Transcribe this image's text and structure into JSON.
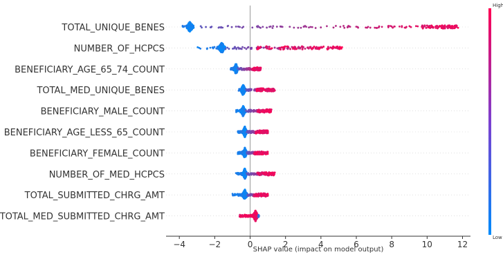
{
  "chart_data": {
    "type": "scatter",
    "subtype": "beeswarm",
    "title": "",
    "xlabel": "SHAP value (impact on model output)",
    "ylabel": "",
    "xlim": [
      -4.75,
      12.45
    ],
    "xticks": [
      -4,
      -2,
      0,
      2,
      4,
      6,
      8,
      10,
      12
    ],
    "grid": false,
    "legend": "colorbar right",
    "colorbar": {
      "high_label": "High",
      "low_label": "Low",
      "low_color": "#008bfb",
      "high_color": "#ff0052"
    },
    "features": [
      {
        "name": "TOTAL_UNIQUE_BENES",
        "min": -3.9,
        "max": 11.9,
        "core_min": -3.6,
        "core_max": -3.2,
        "mid": -3.4,
        "high_start": 9.7
      },
      {
        "name": "NUMBER_OF_HCPCS",
        "min": -3.0,
        "max": 5.2,
        "core_min": -1.8,
        "core_max": -1.4,
        "mid": -1.6,
        "high_start": 0.4
      },
      {
        "name": "BENEFICIARY_AGE_65_74_COUNT",
        "min": -1.1,
        "max": 0.6,
        "core_min": -0.95,
        "core_max": -0.7,
        "mid": -0.8,
        "high_start": 0.1
      },
      {
        "name": "TOTAL_MED_UNIQUE_BENES",
        "min": -0.7,
        "max": 1.4,
        "core_min": -0.55,
        "core_max": -0.25,
        "mid": -0.4,
        "high_start": 0.3
      },
      {
        "name": "BENEFICIARY_MALE_COUNT",
        "min": -0.8,
        "max": 1.2,
        "core_min": -0.55,
        "core_max": -0.25,
        "mid": -0.4,
        "high_start": 0.4
      },
      {
        "name": "BENEFICIARY_AGE_LESS_65_COUNT",
        "min": -0.7,
        "max": 1.0,
        "core_min": -0.45,
        "core_max": -0.2,
        "mid": -0.3,
        "high_start": 0.3
      },
      {
        "name": "BENEFICIARY_FEMALE_COUNT",
        "min": -0.7,
        "max": 1.0,
        "core_min": -0.45,
        "core_max": -0.2,
        "mid": -0.3,
        "high_start": 0.2
      },
      {
        "name": "NUMBER_OF_MED_HCPCS",
        "min": -0.8,
        "max": 1.4,
        "core_min": -0.45,
        "core_max": -0.2,
        "mid": -0.3,
        "high_start": 0.4
      },
      {
        "name": "TOTAL_SUBMITTED_CHRG_AMT",
        "min": -1.0,
        "max": 1.0,
        "core_min": -0.45,
        "core_max": -0.15,
        "mid": -0.3,
        "high_start": 0.2
      },
      {
        "name": "TOTAL_MED_SUBMITTED_CHRG_AMT",
        "min": -0.6,
        "max": 0.5,
        "core_min": 0.15,
        "core_max": 0.45,
        "mid": 0.3,
        "high_start": -0.6
      }
    ]
  }
}
